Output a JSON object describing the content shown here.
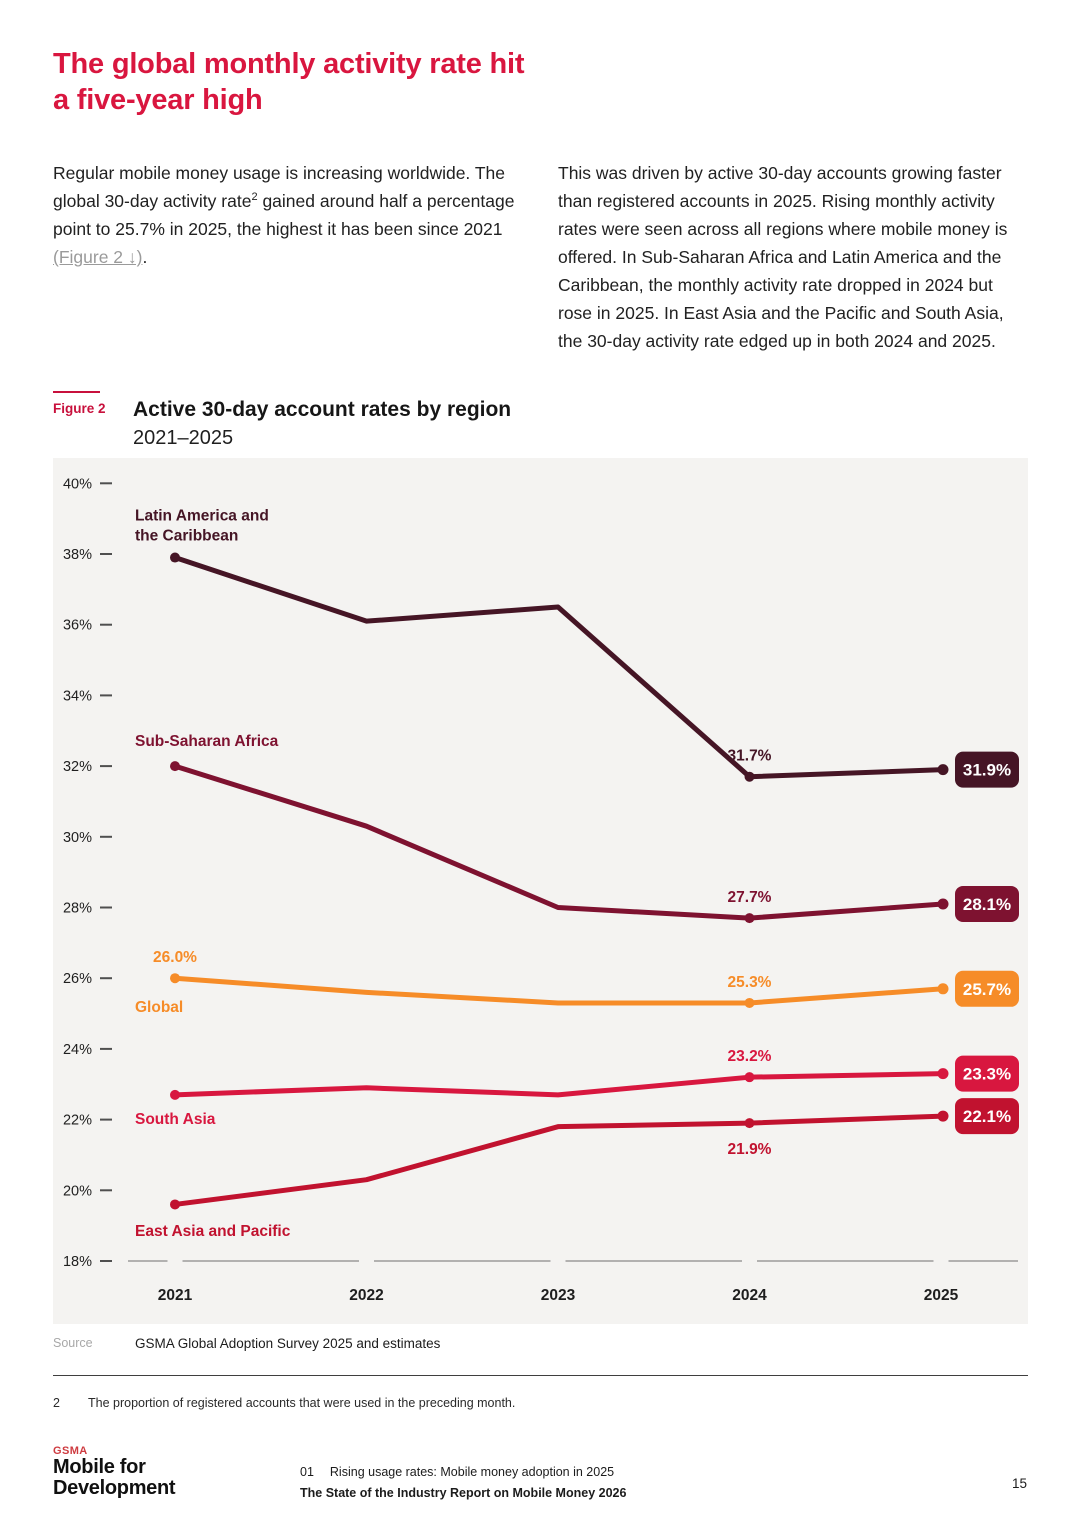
{
  "page": {
    "title_lines": [
      "The global monthly activity rate hit",
      "a five-year high"
    ]
  },
  "intro": {
    "p1": {
      "t1": "Regular mobile money usage is increasing worldwide. The global 30-day activity rate",
      "sup": "2",
      "t2": " gained around half a percentage point to 25.7% in 2025, the highest it has been since 2021 ",
      "link": "(Figure 2 ↓)",
      "t3": "."
    },
    "p2": "This was driven by active 30-day accounts growing faster than registered accounts in 2025. Rising monthly activity rates were seen across all regions where mobile money is offered. In Sub-Saharan Africa and Latin America and the Caribbean, the monthly activity rate dropped in 2024 but rose in 2025. In East Asia and the Pacific and South Asia, the 30-day activity rate edged up in both 2024 and 2025."
  },
  "figure": {
    "label": "Figure 2",
    "title": "Active 30-day account rates by region",
    "subtitle": "2021–2025",
    "source_label": "Source",
    "source_value": "GSMA Global Adoption Survey 2025 and estimates"
  },
  "footnote": {
    "number": "2",
    "text": "The proportion of registered accounts that were used in the preceding month."
  },
  "footer": {
    "logo_top": "GSMA",
    "logo_lines": [
      "Mobile for",
      "Development"
    ],
    "chapter_number": "01",
    "chapter_title": "Rising usage rates: Mobile money adoption in 2025",
    "report_title": "The State of the Industry Report on Mobile Money 2026",
    "page_number": "15"
  },
  "colors": {
    "accent_red": "#D9163F",
    "figure_label_red": "#C8103C",
    "panel_bg": "#F4F3F1",
    "gsma_logo_red": "#CE3B40"
  },
  "chart_data": {
    "type": "line",
    "title": "Active 30-day account rates by region",
    "subtitle": "2021–2025",
    "x_labels": [
      "2021",
      "2022",
      "2023",
      "2024",
      "2025"
    ],
    "ylim": [
      18,
      40
    ],
    "ytick_step": 2,
    "ytick_suffix": "%",
    "grid": false,
    "legend_position": "inline-labels",
    "series": [
      {
        "name": "Latin America and the Caribbean",
        "label_lines": [
          "Latin America and",
          "the Caribbean"
        ],
        "color": "#451525",
        "values": [
          37.9,
          36.1,
          36.5,
          31.7,
          31.9
        ],
        "point_labels": [
          {
            "i": 3,
            "text": "31.7%",
            "pos": "above"
          }
        ],
        "end_badge": "31.9%"
      },
      {
        "name": "Sub-Saharan Africa",
        "label_lines": [
          "Sub-Saharan Africa"
        ],
        "color": "#7E1230",
        "values": [
          32.0,
          30.3,
          28.0,
          27.7,
          28.1
        ],
        "point_labels": [
          {
            "i": 3,
            "text": "27.7%",
            "pos": "above"
          }
        ],
        "end_badge": "28.1%"
      },
      {
        "name": "Global",
        "label_lines": [
          "Global"
        ],
        "color": "#F68C28",
        "values": [
          26.0,
          25.6,
          25.3,
          25.3,
          25.7
        ],
        "point_labels": [
          {
            "i": 0,
            "text": "26.0%",
            "pos": "above"
          },
          {
            "i": 3,
            "text": "25.3%",
            "pos": "above"
          }
        ],
        "end_badge": "25.7%"
      },
      {
        "name": "South Asia",
        "label_lines": [
          "South Asia"
        ],
        "color": "#D8173F",
        "values": [
          22.7,
          22.9,
          22.7,
          23.2,
          23.3
        ],
        "point_labels": [
          {
            "i": 3,
            "text": "23.2%",
            "pos": "above"
          }
        ],
        "end_badge": "23.3%"
      },
      {
        "name": "East Asia and Pacific",
        "label_lines": [
          "East Asia and Pacific"
        ],
        "color": "#C1122F",
        "values": [
          19.6,
          20.3,
          21.8,
          21.9,
          22.1
        ],
        "point_labels": [
          {
            "i": 3,
            "text": "21.9%",
            "pos": "below"
          }
        ],
        "end_badge": "22.1%"
      }
    ]
  }
}
